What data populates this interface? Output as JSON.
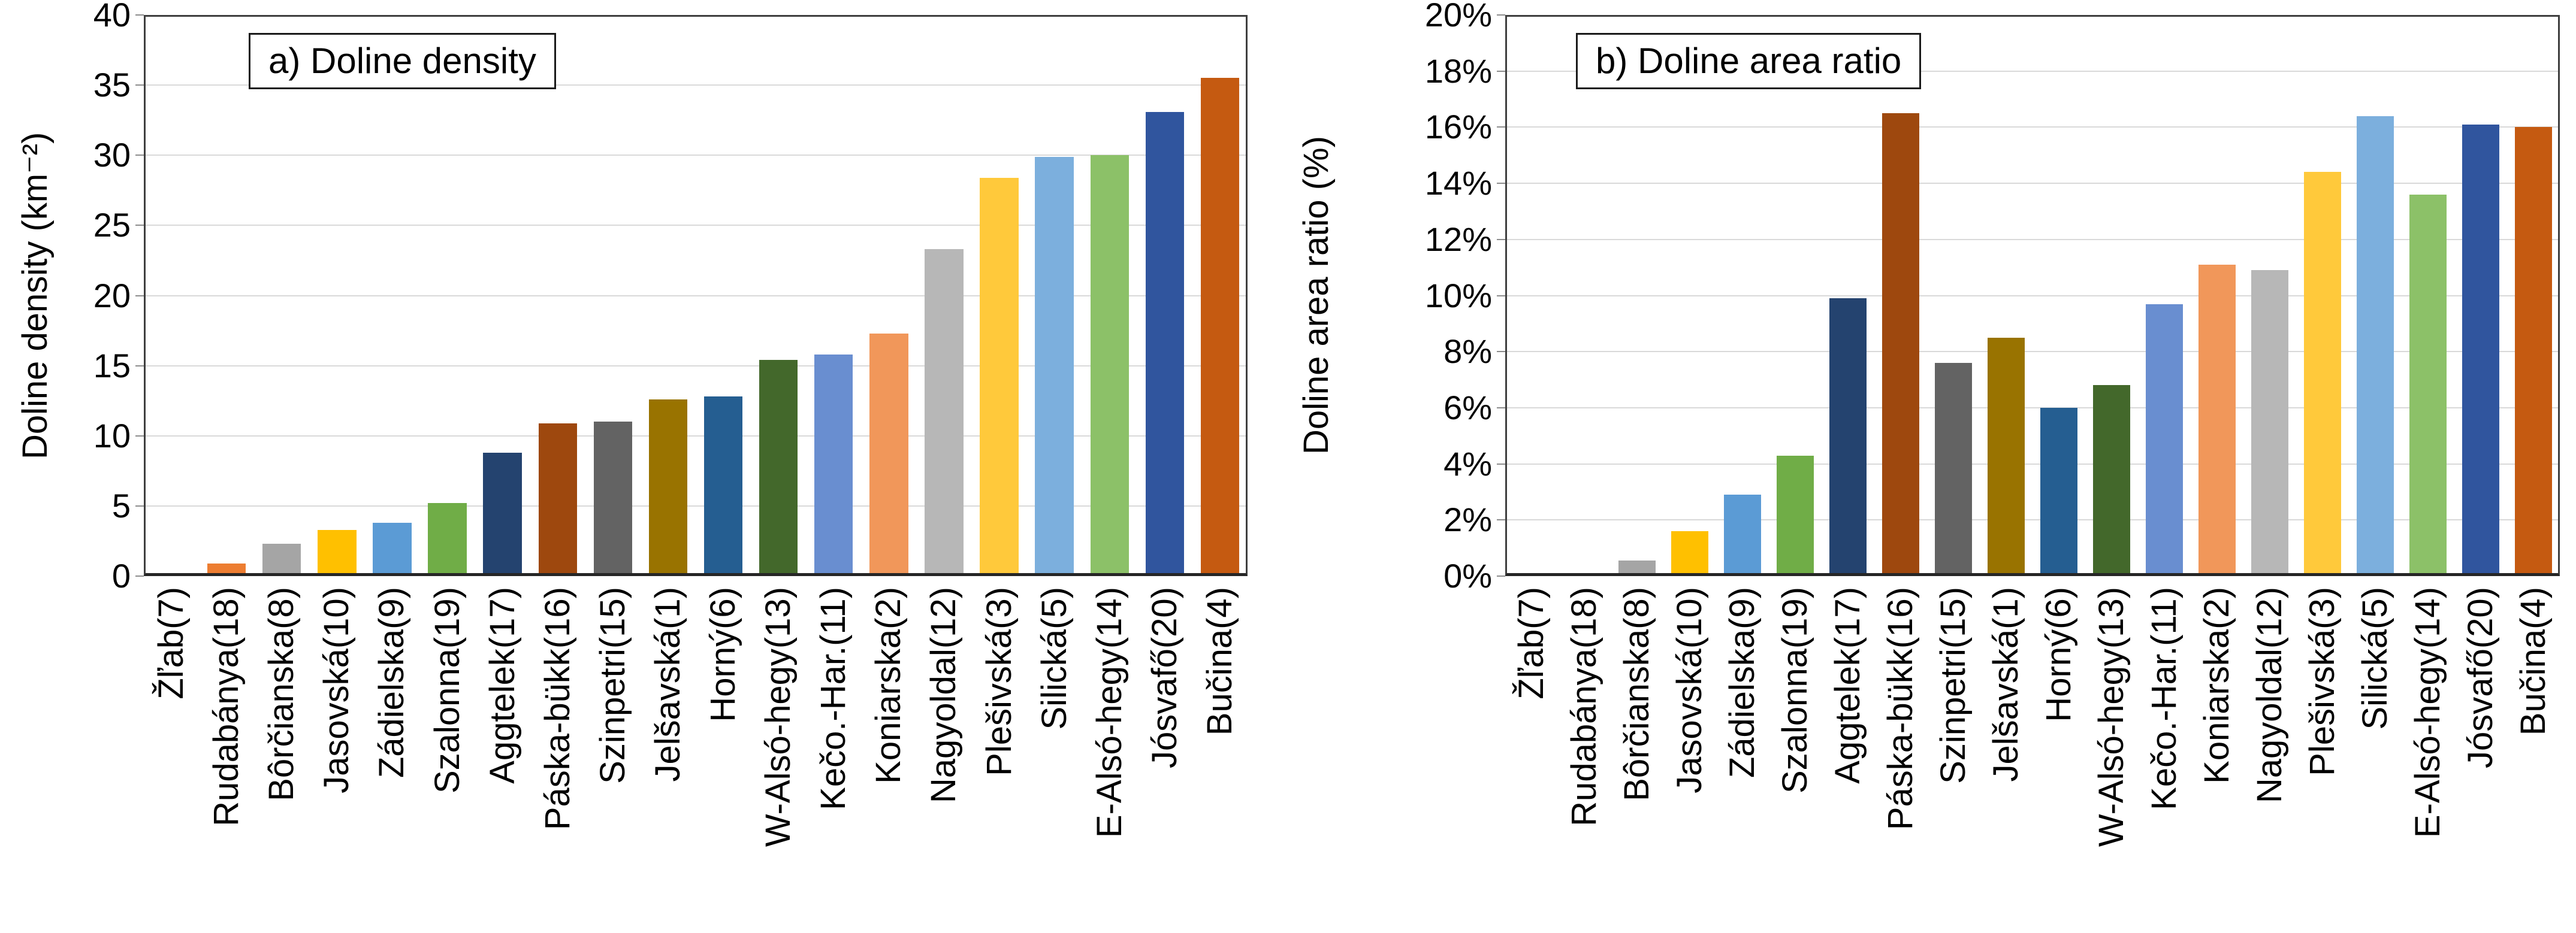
{
  "chart_data": [
    {
      "type": "bar",
      "panel": "a",
      "title": "a) Doline density",
      "ylabel": "Doline density (km⁻²)",
      "xlabel": "",
      "ymin": 0,
      "ymax": 40,
      "ytick_step": 5,
      "ytick_labels": [
        "0",
        "5",
        "10",
        "15",
        "20",
        "25",
        "30",
        "35",
        "40"
      ],
      "grid": true,
      "legend": false,
      "categories": [
        "Žľab(7)",
        "Rudabánya(18)",
        "Bôrčianska(8)",
        "Jasovská(10)",
        "Zádielska(9)",
        "Szalonna(19)",
        "Aggtelek(17)",
        "Páska-bükk(16)",
        "Szinpetri(15)",
        "Jelšavská(1)",
        "Horný(6)",
        "W-Alsó-hegy(13)",
        "Kečo.-Har.(11)",
        "Koniarska(2)",
        "Nagyoldal(12)",
        "Plešivská(3)",
        "Silická(5)",
        "E-Alsó-hegy(14)",
        "Jósvafő(20)",
        "Bučina(4)"
      ],
      "values": [
        0.05,
        0.9,
        2.3,
        3.3,
        3.8,
        5.2,
        8.8,
        10.9,
        11.0,
        12.6,
        12.8,
        15.4,
        15.8,
        17.3,
        23.3,
        28.4,
        29.9,
        30.0,
        33.1,
        35.5
      ],
      "bar_colors": [
        "#4472C4",
        "#ED7D31",
        "#A5A5A5",
        "#FFC000",
        "#5B9BD5",
        "#70AD47",
        "#24436F",
        "#9E480E",
        "#636363",
        "#997300",
        "#255E91",
        "#43682B",
        "#698ED0",
        "#F1975A",
        "#B7B7B7",
        "#FFC93B",
        "#7CAFDD",
        "#8CC168",
        "#30559E",
        "#C55A11"
      ]
    },
    {
      "type": "bar",
      "panel": "b",
      "title": "b) Doline area ratio",
      "ylabel": "Doline area ratio (%)",
      "xlabel": "",
      "ymin": 0,
      "ymax": 20,
      "ytick_step": 2,
      "ytick_labels": [
        "0%",
        "2%",
        "4%",
        "6%",
        "8%",
        "10%",
        "12%",
        "14%",
        "16%",
        "18%",
        "20%"
      ],
      "grid": true,
      "legend": false,
      "categories": [
        "Žľab(7)",
        "Rudabánya(18)",
        "Bôrčianska(8)",
        "Jasovská(10)",
        "Zádielska(9)",
        "Szalonna(19)",
        "Aggtelek(17)",
        "Páska-bükk(16)",
        "Szinpetri(15)",
        "Jelšavská(1)",
        "Horný(6)",
        "W-Alsó-hegy(13)",
        "Kečo.-Har.(11)",
        "Koniarska(2)",
        "Nagyoldal(12)",
        "Plešivská(3)",
        "Silická(5)",
        "E-Alsó-hegy(14)",
        "Jósvafő(20)",
        "Bučina(4)"
      ],
      "values": [
        0.02,
        0.1,
        0.55,
        1.6,
        2.9,
        4.3,
        9.9,
        16.5,
        7.6,
        8.5,
        6.0,
        6.8,
        9.7,
        11.1,
        10.9,
        14.4,
        16.4,
        13.6,
        16.1,
        16.0
      ],
      "bar_colors": [
        "#4472C4",
        "#ED7D31",
        "#A5A5A5",
        "#FFC000",
        "#5B9BD5",
        "#70AD47",
        "#24436F",
        "#9E480E",
        "#636363",
        "#997300",
        "#255E91",
        "#43682B",
        "#698ED0",
        "#F1975A",
        "#B7B7B7",
        "#FFC93B",
        "#7CAFDD",
        "#8CC168",
        "#30559E",
        "#C55A11"
      ]
    }
  ]
}
